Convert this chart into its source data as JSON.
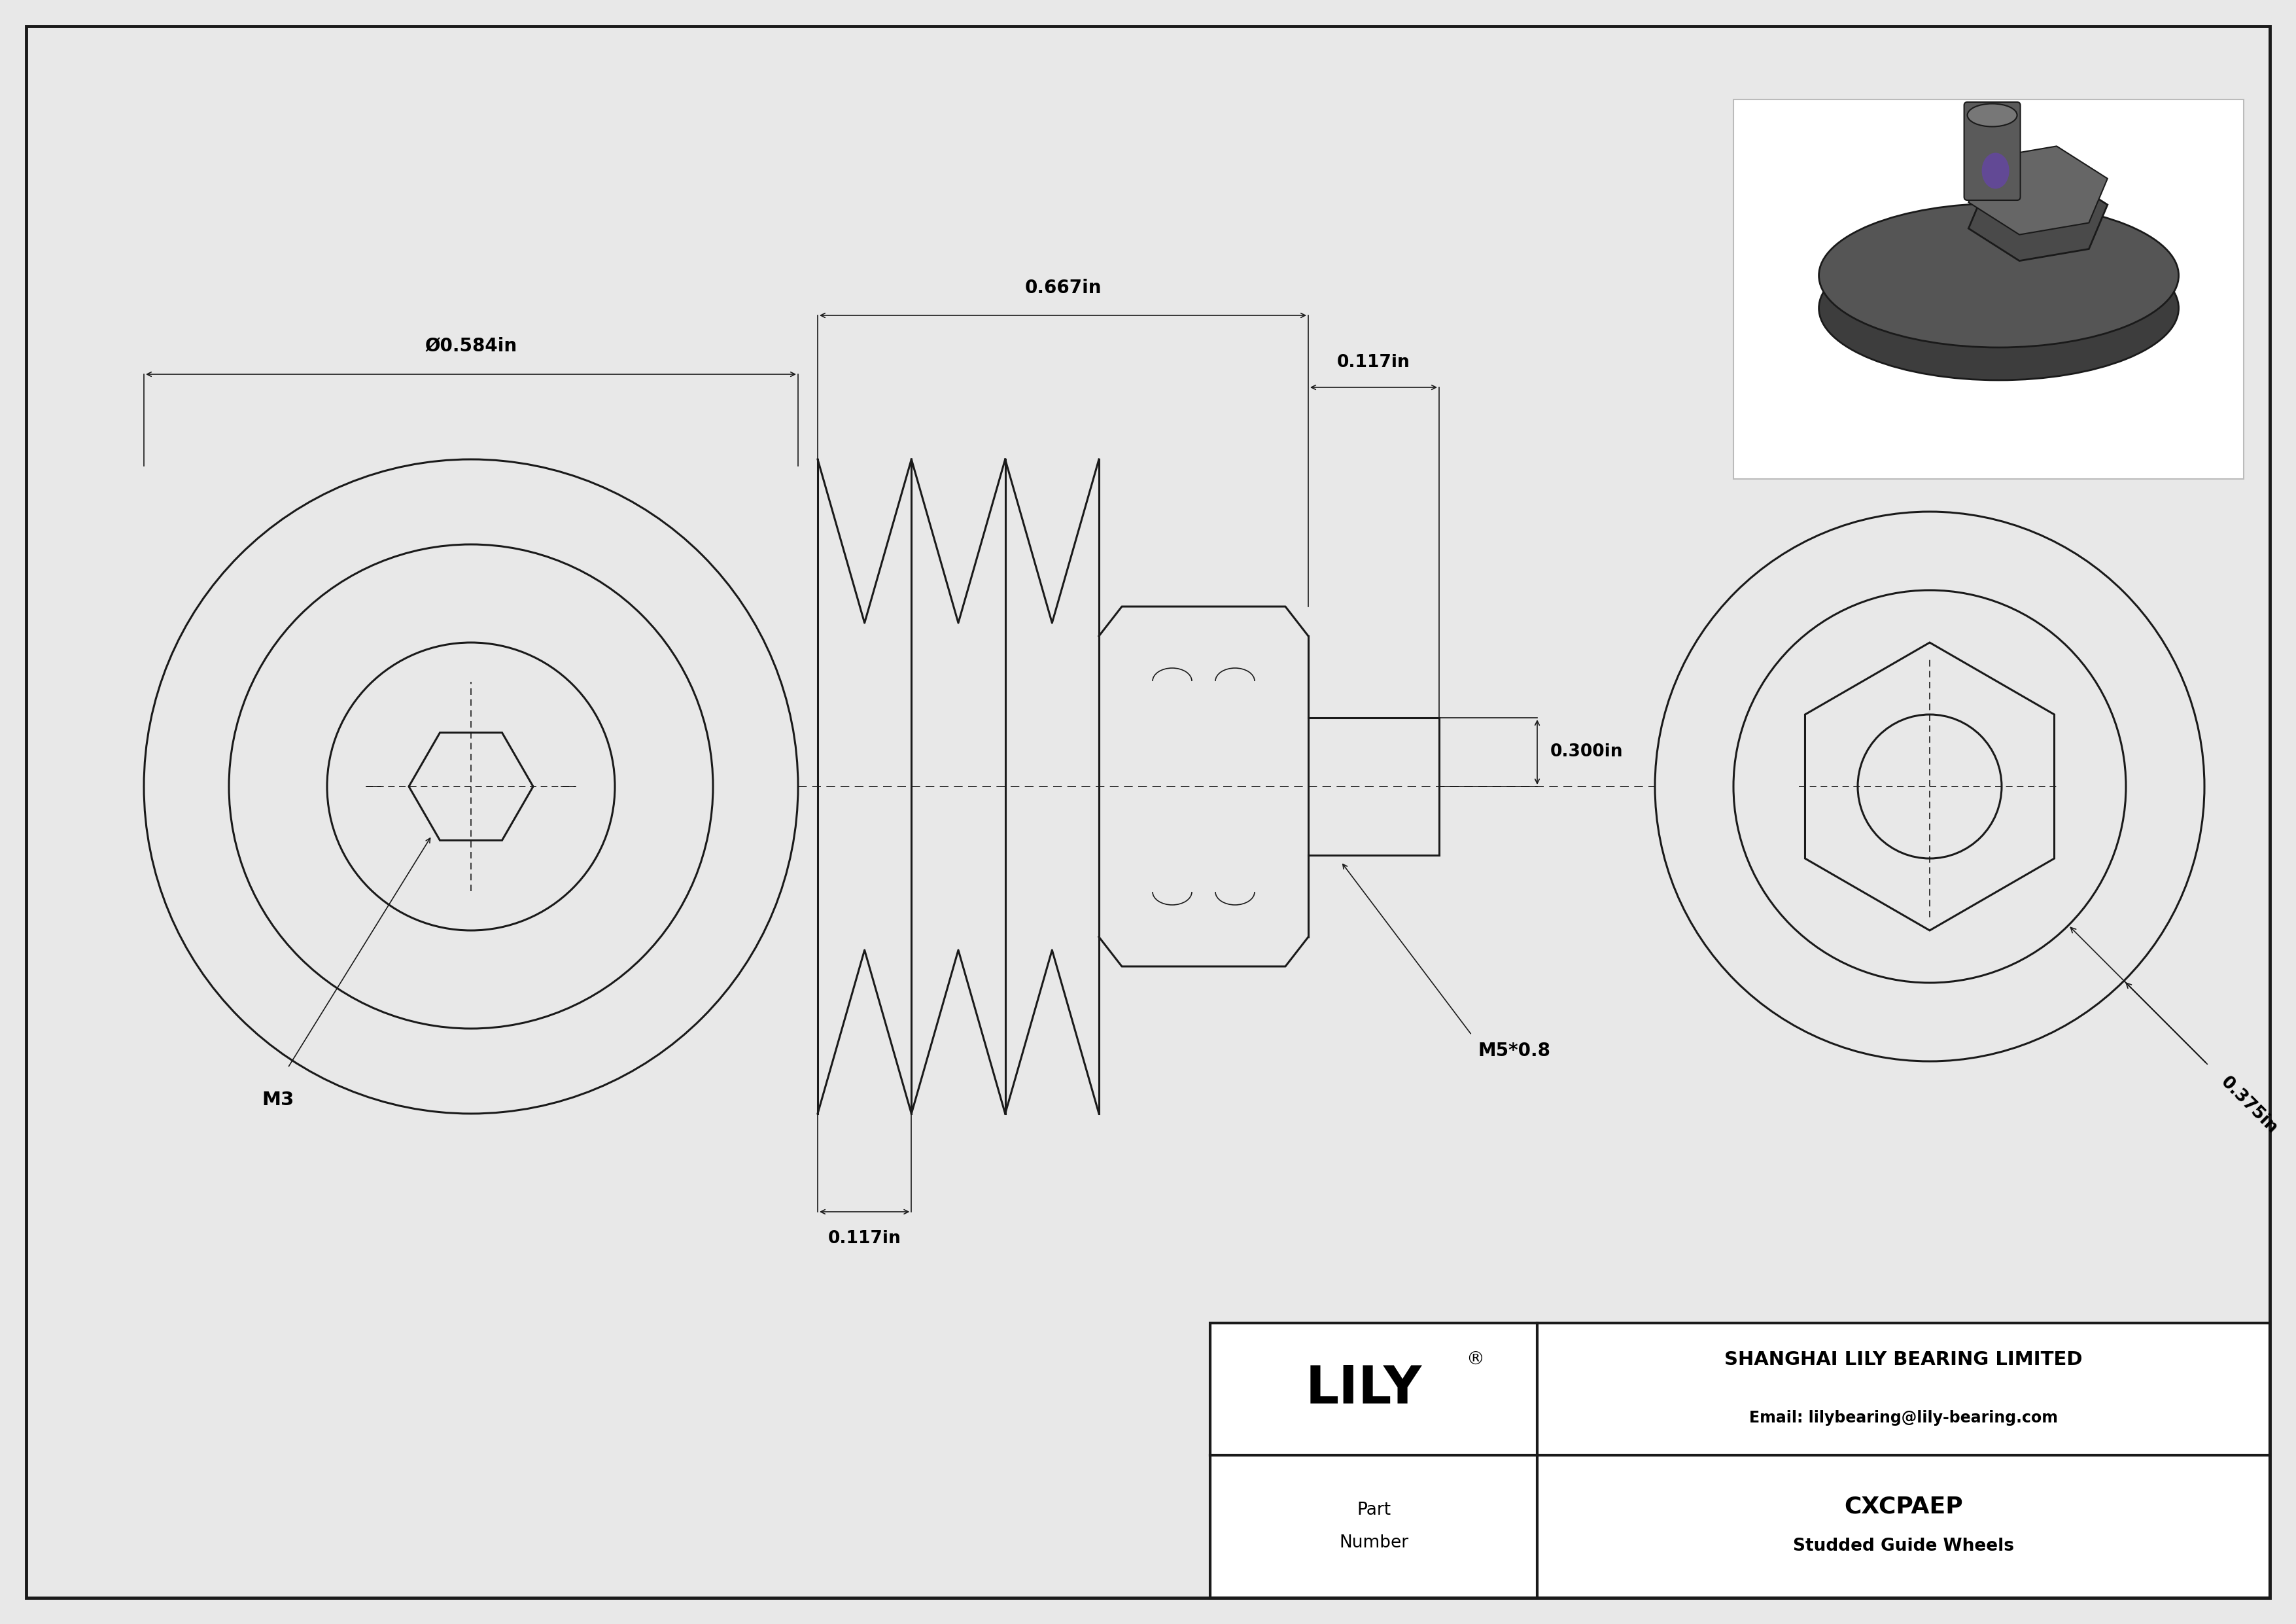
{
  "bg_color": "#e8e8e8",
  "drawing_bg": "#ffffff",
  "line_color": "#1a1a1a",
  "dim_color": "#1a1a1a",
  "part_number": "CXCPAEP",
  "part_desc": "Studded Guide Wheels",
  "company": "SHANGHAI LILY BEARING LIMITED",
  "email": "Email: lilybearing@lily-bearing.com",
  "dim_diameter": "Ø0.584in",
  "dim_width_total": "0.667in",
  "dim_stub_right": "0.117in",
  "dim_stub_bottom": "0.117in",
  "dim_stud": "0.300in",
  "dim_right_view": "0.375in",
  "label_m3": "M3",
  "label_m5": "M5*0.8"
}
